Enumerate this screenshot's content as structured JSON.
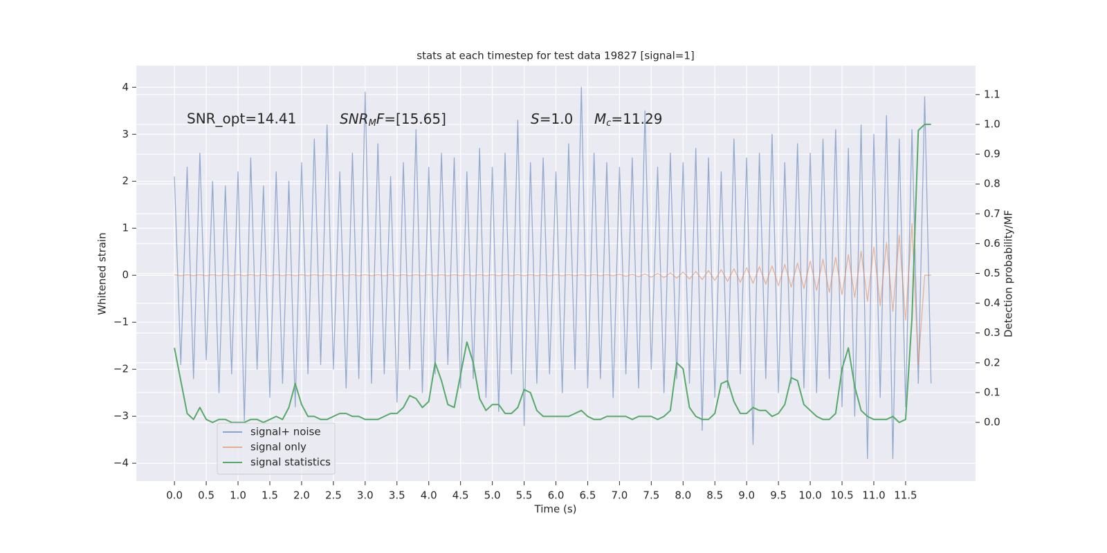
{
  "chart_data": {
    "type": "line",
    "title": "stats at each timestep for test data 19827 [signal=1]",
    "x_label": "Time (s)",
    "y_label": "Whitened strain",
    "y2_label": "Detection probability/MF",
    "annotations": [
      [
        "SNR_opt=14.41"
      ],
      [
        "SNR",
        "M",
        "F",
        "=[15.65]"
      ],
      [
        "S",
        "=1.0"
      ],
      [
        "M",
        "c",
        "=11.29"
      ]
    ],
    "xlim": [
      -0.6,
      12.6
    ],
    "ylim": [
      -4.38,
      4.46
    ],
    "y2lim": [
      -0.197,
      1.197
    ],
    "xticks": [
      {
        "value": 0,
        "label": "0.0"
      },
      {
        "value": 0.5,
        "label": "0.5"
      },
      {
        "value": 1,
        "label": "1.0"
      },
      {
        "value": 1.5,
        "label": "1.5"
      },
      {
        "value": 2,
        "label": "2.0"
      },
      {
        "value": 2.5,
        "label": "2.5"
      },
      {
        "value": 3,
        "label": "3.0"
      },
      {
        "value": 3.5,
        "label": "3.5"
      },
      {
        "value": 4,
        "label": "4.0"
      },
      {
        "value": 4.5,
        "label": "4.5"
      },
      {
        "value": 5,
        "label": "5.0"
      },
      {
        "value": 5.5,
        "label": "5.5"
      },
      {
        "value": 6,
        "label": "6.0"
      },
      {
        "value": 6.5,
        "label": "6.5"
      },
      {
        "value": 7,
        "label": "7.0"
      },
      {
        "value": 7.5,
        "label": "7.5"
      },
      {
        "value": 8,
        "label": "8.0"
      },
      {
        "value": 8.5,
        "label": "8.5"
      },
      {
        "value": 9,
        "label": "9.0"
      },
      {
        "value": 9.5,
        "label": "9.5"
      },
      {
        "value": 10,
        "label": "10.0"
      },
      {
        "value": 10.5,
        "label": "10.5"
      },
      {
        "value": 11,
        "label": "11.0"
      },
      {
        "value": 11.5,
        "label": "11.5"
      }
    ],
    "yticks": [
      {
        "value": -4,
        "label": "−4"
      },
      {
        "value": -3,
        "label": "−3"
      },
      {
        "value": -2,
        "label": "−2"
      },
      {
        "value": -1,
        "label": "−1"
      },
      0,
      1,
      2,
      3,
      4
    ],
    "y2ticks": [
      {
        "value": 0,
        "label": "0.0"
      },
      {
        "value": 0.1,
        "label": "0.1"
      },
      {
        "value": 0.2,
        "label": "0.2"
      },
      {
        "value": 0.3,
        "label": "0.3"
      },
      {
        "value": 0.4,
        "label": "0.4"
      },
      {
        "value": 0.5,
        "label": "0.5"
      },
      {
        "value": 0.6,
        "label": "0.6"
      },
      {
        "value": 0.7,
        "label": "0.7"
      },
      {
        "value": 0.8,
        "label": "0.8"
      },
      {
        "value": 0.9,
        "label": "0.9"
      },
      {
        "value": 1,
        "label": "1.0"
      },
      {
        "value": 1.1,
        "label": "1.1"
      }
    ],
    "grid": true,
    "legend": "lower left",
    "x": [
      0,
      0.1,
      0.2,
      0.3,
      0.4,
      0.5,
      0.6,
      0.7,
      0.8,
      0.9,
      1,
      1.1,
      1.2,
      1.3,
      1.4,
      1.5,
      1.6,
      1.7,
      1.8,
      1.9,
      2,
      2.1,
      2.2,
      2.3,
      2.4,
      2.5,
      2.6,
      2.7,
      2.8,
      2.9,
      3,
      3.1,
      3.2,
      3.3,
      3.4,
      3.5,
      3.6,
      3.7,
      3.8,
      3.9,
      4,
      4.1,
      4.2,
      4.3,
      4.4,
      4.5,
      4.6,
      4.7,
      4.8,
      4.9,
      5,
      5.1,
      5.2,
      5.3,
      5.4,
      5.5,
      5.6,
      5.7,
      5.8,
      5.9,
      6,
      6.1,
      6.2,
      6.3,
      6.4,
      6.5,
      6.6,
      6.7,
      6.8,
      6.9,
      7,
      7.1,
      7.2,
      7.3,
      7.4,
      7.5,
      7.6,
      7.7,
      7.8,
      7.9,
      8,
      8.1,
      8.2,
      8.3,
      8.4,
      8.5,
      8.6,
      8.7,
      8.8,
      8.9,
      9,
      9.1,
      9.2,
      9.3,
      9.4,
      9.5,
      9.6,
      9.7,
      9.8,
      9.9,
      10,
      10.1,
      10.2,
      10.3,
      10.4,
      10.5,
      10.6,
      10.7,
      10.8,
      10.9,
      11,
      11.1,
      11.2,
      11.3,
      11.4,
      11.5,
      11.6,
      11.7,
      11.8,
      11.9
    ],
    "series": [
      {
        "name": "signal+ noise",
        "color": "#4c72b0",
        "values": [
          2.1,
          -1.9,
          2.3,
          -2.2,
          2.6,
          -1.8,
          2.0,
          -2.5,
          1.9,
          -2.1,
          2.2,
          -3.1,
          2.5,
          -2.0,
          1.9,
          -2.6,
          2.2,
          -2.3,
          2.0,
          -2.8,
          2.4,
          -2.1,
          2.9,
          -1.9,
          3.2,
          -2.0,
          2.2,
          -2.4,
          2.6,
          -2.2,
          3.9,
          -2.3,
          2.8,
          -2.1,
          2.1,
          -2.7,
          2.4,
          -2.0,
          3.1,
          -2.5,
          2.3,
          -2.1,
          2.6,
          -1.9,
          2.5,
          -2.4,
          2.2,
          -2.2,
          2.7,
          -2.6,
          2.3,
          -2.9,
          2.6,
          -2.1,
          3.3,
          -3.2,
          2.4,
          -2.3,
          2.5,
          -2.1,
          2.2,
          -2.5,
          2.8,
          -2.0,
          4.0,
          -2.4,
          2.6,
          -2.2,
          2.4,
          -2.6,
          2.3,
          -2.1,
          2.5,
          -2.4,
          3.5,
          -2.0,
          2.3,
          -2.5,
          2.6,
          -2.2,
          2.4,
          -2.3,
          2.7,
          -3.3,
          2.5,
          -2.6,
          2.2,
          -2.4,
          2.9,
          -2.1,
          2.5,
          -3.6,
          2.6,
          -2.2,
          3.0,
          -2.5,
          2.4,
          -2.3,
          2.8,
          -2.4,
          2.6,
          -2.5,
          2.9,
          -2.2,
          3.1,
          -2.8,
          2.7,
          -3.0,
          3.2,
          -3.9,
          3.0,
          -2.6,
          3.4,
          -3.9,
          2.9,
          -2.8,
          3.1,
          -2.3,
          3.8,
          -2.3
        ]
      },
      {
        "name": "signal only",
        "color": "#dd8452",
        "values": [
          0.01,
          -0.01,
          0.01,
          -0.01,
          0.01,
          -0.01,
          0.01,
          -0.01,
          0.01,
          -0.01,
          0.01,
          -0.01,
          0.01,
          -0.01,
          0.01,
          -0.01,
          0.01,
          -0.01,
          0.01,
          -0.01,
          0.01,
          -0.01,
          0.01,
          -0.01,
          0.01,
          -0.01,
          0.01,
          -0.01,
          0.01,
          -0.01,
          0.01,
          -0.01,
          0.01,
          -0.01,
          0.01,
          -0.01,
          0.01,
          -0.01,
          0.01,
          -0.01,
          0.01,
          -0.01,
          0.01,
          -0.01,
          0.01,
          -0.01,
          0.01,
          -0.01,
          0.01,
          -0.01,
          0.01,
          -0.01,
          0.01,
          -0.01,
          0.01,
          -0.01,
          0.01,
          -0.01,
          0.01,
          -0.01,
          0.01,
          -0.01,
          0.01,
          -0.01,
          0.01,
          -0.01,
          0.01,
          -0.01,
          0.01,
          -0.01,
          0.02,
          -0.02,
          0.02,
          -0.03,
          0.03,
          -0.04,
          0.04,
          -0.05,
          0.05,
          -0.06,
          0.07,
          -0.08,
          0.08,
          -0.09,
          0.1,
          -0.11,
          0.12,
          -0.13,
          0.14,
          -0.15,
          0.16,
          -0.17,
          0.18,
          -0.19,
          0.2,
          -0.22,
          0.23,
          -0.25,
          0.26,
          -0.28,
          0.3,
          -0.32,
          0.34,
          -0.36,
          0.38,
          -0.41,
          0.44,
          -0.47,
          0.51,
          -0.55,
          0.6,
          -0.65,
          0.7,
          -0.77,
          0.85,
          -0.95,
          1.1,
          -1.9,
          0.0,
          0.0
        ]
      },
      {
        "name": "signal statistics",
        "color": "#55a868",
        "axis": "y2",
        "values": [
          0.25,
          0.14,
          0.03,
          0.01,
          0.05,
          0.01,
          0.0,
          0.01,
          0.01,
          0.0,
          0.0,
          0.0,
          0.01,
          0.01,
          0.0,
          0.01,
          0.02,
          0.01,
          0.05,
          0.13,
          0.06,
          0.02,
          0.02,
          0.01,
          0.01,
          0.02,
          0.03,
          0.03,
          0.02,
          0.02,
          0.01,
          0.01,
          0.01,
          0.02,
          0.03,
          0.03,
          0.05,
          0.09,
          0.08,
          0.05,
          0.07,
          0.2,
          0.14,
          0.06,
          0.05,
          0.16,
          0.27,
          0.2,
          0.08,
          0.04,
          0.06,
          0.06,
          0.03,
          0.03,
          0.05,
          0.11,
          0.1,
          0.04,
          0.02,
          0.02,
          0.02,
          0.02,
          0.02,
          0.03,
          0.04,
          0.02,
          0.01,
          0.01,
          0.02,
          0.02,
          0.02,
          0.02,
          0.01,
          0.02,
          0.02,
          0.02,
          0.01,
          0.02,
          0.04,
          0.2,
          0.18,
          0.05,
          0.02,
          0.01,
          0.01,
          0.03,
          0.13,
          0.14,
          0.07,
          0.03,
          0.03,
          0.05,
          0.04,
          0.04,
          0.02,
          0.03,
          0.06,
          0.15,
          0.14,
          0.06,
          0.04,
          0.02,
          0.01,
          0.01,
          0.03,
          0.18,
          0.25,
          0.12,
          0.04,
          0.02,
          0.01,
          0.01,
          0.01,
          0.02,
          0.0,
          0.01,
          0.35,
          0.98,
          1.0,
          1.0
        ]
      }
    ]
  }
}
